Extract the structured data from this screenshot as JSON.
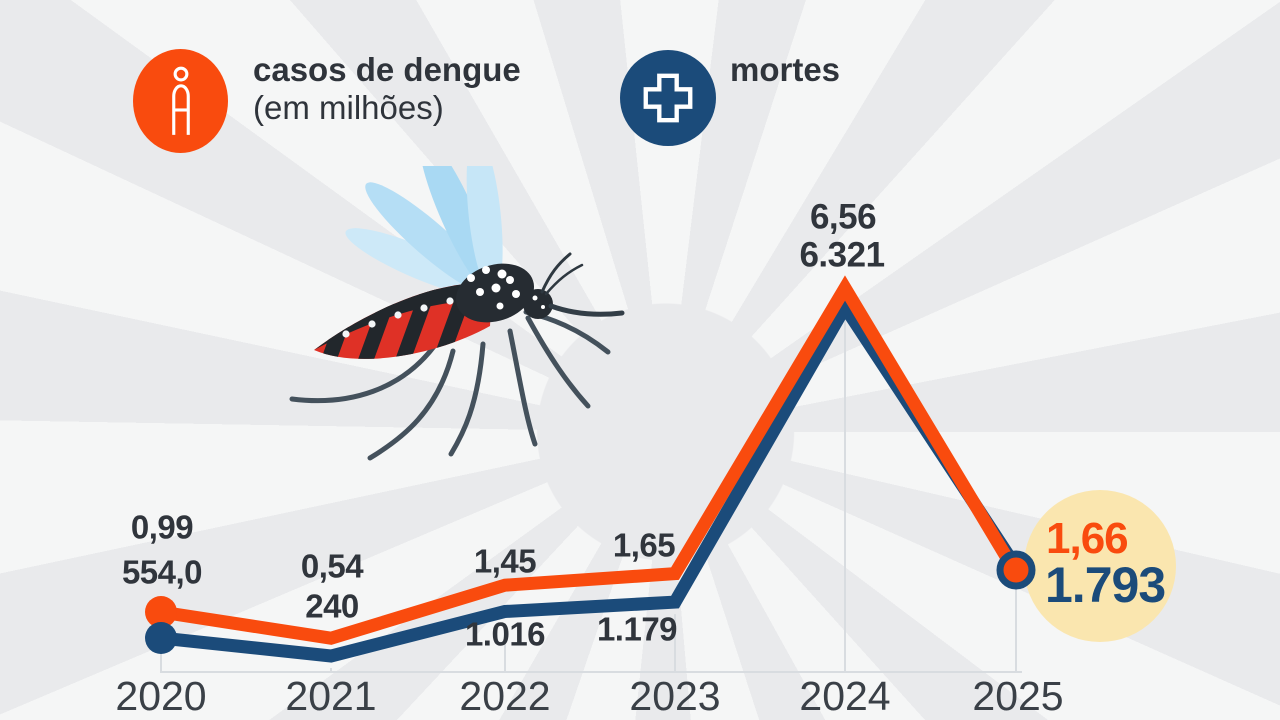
{
  "legend": {
    "cases": {
      "icon": "person-icon",
      "label_bold": "casos de dengue",
      "label_sub": "(em milhões)",
      "color": "#F94B0E"
    },
    "deaths": {
      "icon": "medical-cross-icon",
      "label_bold": "mortes",
      "color": "#1B4B7A"
    }
  },
  "illustration": "mosquito",
  "colors": {
    "cases": "#F94B0E",
    "deaths": "#1B4B7A",
    "highlight_bg": "#FAE6AF",
    "background": "#E9EAEC",
    "gridline": "#D8DCE0",
    "label_text": "#30353C",
    "axis_text": "#3A4047"
  },
  "chart_data": {
    "type": "line",
    "categories": [
      "2020",
      "2021",
      "2022",
      "2023",
      "2024",
      "2025"
    ],
    "series": [
      {
        "name": "casos de dengue (em milhões)",
        "color": "#F94B0E",
        "values": [
          0.99,
          0.54,
          1.45,
          1.65,
          6.56,
          1.66
        ],
        "labels": [
          "0,99",
          "0,54",
          "1,45",
          "1,65",
          "6,56",
          "1,66"
        ]
      },
      {
        "name": "mortes",
        "color": "#1B4B7A",
        "values": [
          554.0,
          240,
          1016,
          1179,
          6321,
          1793
        ],
        "labels": [
          "554,0",
          "240",
          "1.016",
          "1.179",
          "6.321",
          "1.793"
        ]
      }
    ],
    "title": "",
    "xlabel": "",
    "ylabel": "",
    "y_axis_visible": false,
    "grid": "vertical-ticks-per-year",
    "legend_position": "top",
    "highlight": {
      "category": "2025",
      "background": "#FAE6AF"
    }
  }
}
